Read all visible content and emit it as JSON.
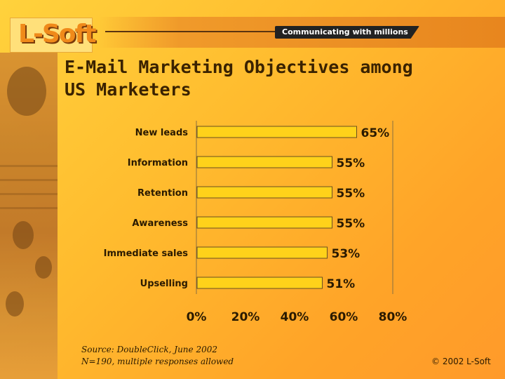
{
  "header": {
    "tagline": "Communicating with millions",
    "logo_text": "L-Soft"
  },
  "title": "E-Mail Marketing Objectives among US Marketers",
  "title_line1": "E-Mail Marketing Objectives among",
  "title_line2": "US Marketers",
  "chart_data": {
    "type": "bar",
    "orientation": "horizontal",
    "categories": [
      "New leads",
      "Information",
      "Retention",
      "Awareness",
      "Immediate sales",
      "Upselling"
    ],
    "values": [
      65,
      55,
      55,
      55,
      53,
      51
    ],
    "value_labels": [
      "65%",
      "55%",
      "55%",
      "55%",
      "53%",
      "51%"
    ],
    "xlim": [
      0,
      80
    ],
    "xticks": [
      0,
      20,
      40,
      60,
      80
    ],
    "xtick_labels": [
      "0%",
      "20%",
      "40%",
      "60%",
      "80%"
    ],
    "bar_color": "#ffd21a",
    "grid": false
  },
  "source_line1": "Source: DoubleClick, June 2002",
  "source_line2": "N=190, multiple responses allowed",
  "copyright": "© 2002 L-Soft"
}
